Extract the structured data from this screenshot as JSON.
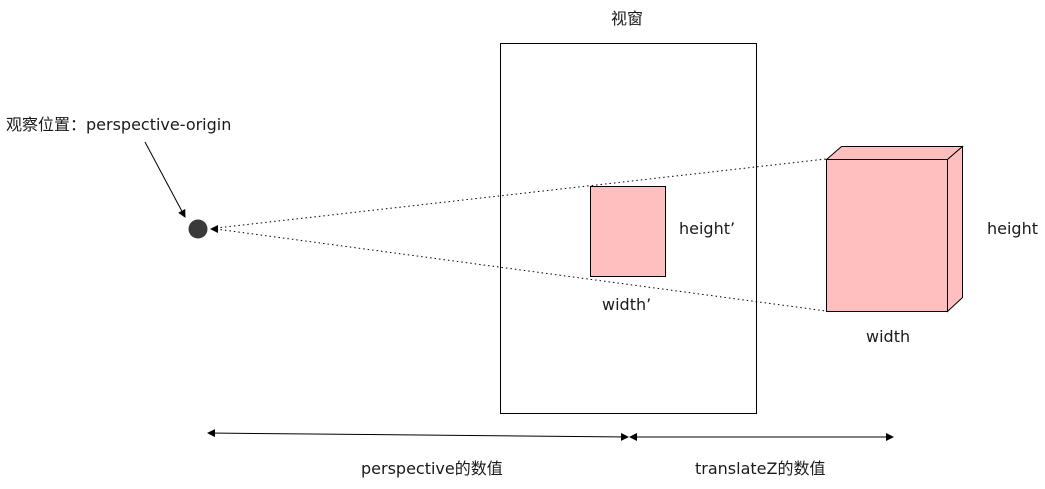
{
  "viewport_label": "视窗",
  "observer_label": "观察位置：perspective-origin",
  "small_box": {
    "height_label": "height’",
    "width_label": "width’"
  },
  "large_box": {
    "height_label": "height",
    "width_label": "width"
  },
  "dimensions": {
    "perspective_label": "perspective的数值",
    "translatez_label": "translateZ的数值"
  },
  "colors": {
    "box_fill": "#ffbfbf",
    "stroke": "#000000",
    "observer_dot": "#3a3a3a"
  }
}
